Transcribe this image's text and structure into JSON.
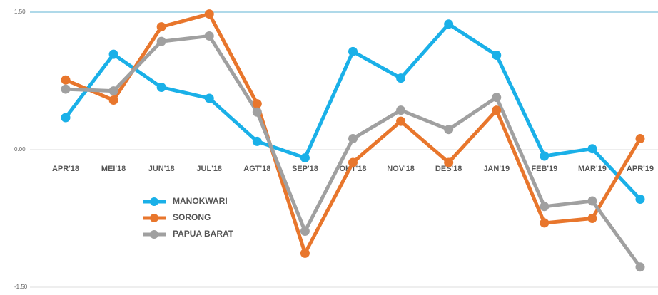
{
  "chart_data": {
    "type": "line",
    "categories": [
      "APR'18",
      "MEI'18",
      "JUN'18",
      "JUL'18",
      "AGT'18",
      "SEP'18",
      "OKT'18",
      "NOV'18",
      "DES'18",
      "JAN'19",
      "FEB'19",
      "MAR'19",
      "APR'19"
    ],
    "series": [
      {
        "name": "MANOKWARI",
        "color": "#1ab0e8",
        "values": [
          0.35,
          1.04,
          0.68,
          0.56,
          0.09,
          -0.09,
          1.07,
          0.78,
          1.37,
          1.03,
          -0.07,
          0.01,
          -0.54
        ]
      },
      {
        "name": "SORONG",
        "color": "#e8762c",
        "values": [
          0.76,
          0.54,
          1.34,
          1.48,
          0.5,
          -1.13,
          -0.14,
          0.31,
          -0.14,
          0.43,
          -0.8,
          -0.75,
          0.12
        ]
      },
      {
        "name": "PAPUA BARAT",
        "color": "#a0a0a0",
        "values": [
          0.66,
          0.64,
          1.18,
          1.24,
          0.41,
          -0.89,
          0.12,
          0.43,
          0.22,
          0.57,
          -0.62,
          -0.56,
          -1.28
        ]
      }
    ],
    "ylim": [
      -1.5,
      1.5
    ],
    "yticks": [
      {
        "value": -1.5,
        "label": "-1.50"
      },
      {
        "value": 0,
        "label": "0.00"
      },
      {
        "value": 1.5,
        "label": "1.50"
      }
    ],
    "grid": true,
    "legend": "lower-left"
  }
}
